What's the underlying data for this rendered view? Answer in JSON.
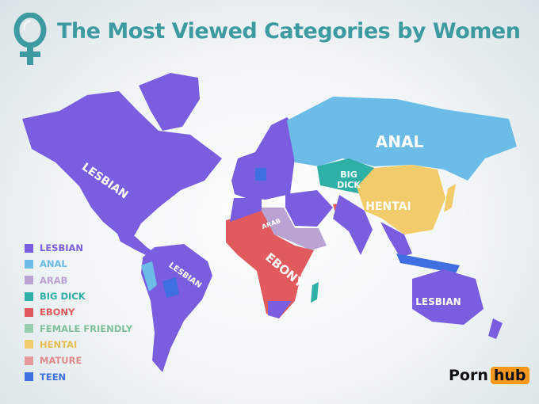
{
  "title": "The Most Viewed Categories by Women",
  "colors": {
    "lesbian": "#7b5ee0",
    "anal": "#6bbde8",
    "arab": "#b9a3d3",
    "big_dick": "#2fb0a6",
    "ebony": "#e05a5e",
    "female_friendly": "#97cfb0",
    "hentai": "#f2cc6b",
    "mature": "#e59999",
    "teen": "#3f6fe0",
    "title": "#3c9aa0"
  },
  "legend": [
    {
      "label": "LESBIAN",
      "color": "#7b5ee0"
    },
    {
      "label": "ANAL",
      "color": "#6bbde8"
    },
    {
      "label": "ARAB",
      "color": "#b9a3d3"
    },
    {
      "label": "BIG DICK",
      "color": "#2fb0a6"
    },
    {
      "label": "EBONY",
      "color": "#e05a5e"
    },
    {
      "label": "FEMALE FRIENDLY",
      "color": "#97cfb0"
    },
    {
      "label": "HENTAI",
      "color": "#f2cc6b"
    },
    {
      "label": "MATURE",
      "color": "#e59999"
    },
    {
      "label": "TEEN",
      "color": "#3f6fe0"
    }
  ],
  "map_labels": {
    "north_america": "LESBIAN",
    "russia": "ANAL",
    "central_asia_1": "BIG",
    "central_asia_2": "DICK",
    "china": "HENTAI",
    "middle_east": "ARAB",
    "africa": "EBONY",
    "south_america": "LESBIAN",
    "australia": "LESBIAN"
  },
  "logo": {
    "part1": "Porn",
    "part2": "hub"
  }
}
